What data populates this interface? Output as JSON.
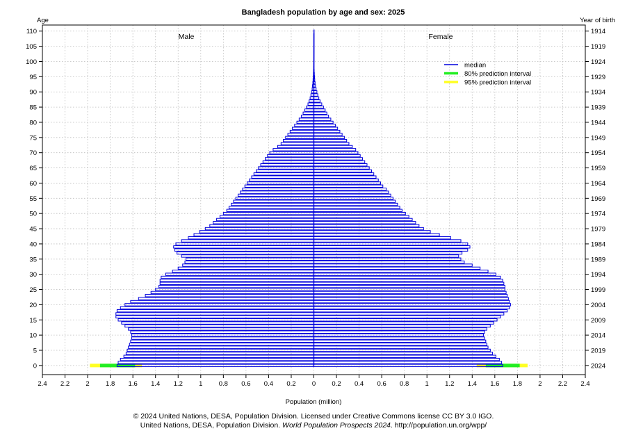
{
  "chart_data": {
    "type": "bar",
    "orientation": "population-pyramid",
    "title": "Bangladesh population by age and sex: 2025",
    "left_axis_title": "Age",
    "right_axis_title": "Year of birth",
    "xlabel": "Population (million)",
    "xlim": [
      -2.4,
      2.4
    ],
    "ylim": [
      -3,
      112
    ],
    "grid": true,
    "x_ticks": [
      -2.4,
      -2.2,
      -2,
      -1.8,
      -1.6,
      -1.4,
      -1.2,
      -1,
      -0.8,
      -0.6,
      -0.4,
      -0.2,
      0,
      0.2,
      0.4,
      0.6,
      0.8,
      1,
      1.2,
      1.4,
      1.6,
      1.8,
      2,
      2.2,
      2.4
    ],
    "x_tick_labels": [
      "2.4",
      "2.2",
      "2",
      "1.8",
      "1.6",
      "1.4",
      "1.2",
      "1",
      "0.8",
      "0.6",
      "0.4",
      "0.2",
      "0",
      "0.2",
      "0.4",
      "0.6",
      "0.8",
      "1",
      "1.2",
      "1.4",
      "1.6",
      "1.8",
      "2",
      "2.2",
      "2.4"
    ],
    "age_ticks": [
      0,
      5,
      10,
      15,
      20,
      25,
      30,
      35,
      40,
      45,
      50,
      55,
      60,
      65,
      70,
      75,
      80,
      85,
      90,
      95,
      100,
      105,
      110
    ],
    "age_tick_labels": [
      "0",
      "5",
      "10",
      "15",
      "20",
      "25",
      "30",
      "35",
      "40",
      "45",
      "50",
      "55",
      "60",
      "65",
      "70",
      "75",
      "80",
      "85",
      "90",
      "95",
      "100",
      "105",
      "110"
    ],
    "birth_year_tick_labels": [
      "2024",
      "2019",
      "2014",
      "2009",
      "2004",
      "1999",
      "1994",
      "1989",
      "1984",
      "1979",
      "1974",
      "1969",
      "1964",
      "1959",
      "1954",
      "1949",
      "1944",
      "1939",
      "1934",
      "1929",
      "1924",
      "1919",
      "1914"
    ],
    "side_labels": {
      "left": "Male",
      "right": "Female"
    },
    "legend": {
      "placement": "top-right",
      "entries": [
        {
          "label": "median",
          "color": "#0000dd"
        },
        {
          "label": "80% prediction interval",
          "color": "#22ee22"
        },
        {
          "label": "95% prediction interval",
          "color": "#ffff22"
        }
      ]
    },
    "colors": {
      "median": "#0000dd",
      "pi80": "#22ee22",
      "pi95": "#ffff22",
      "grid": "#bbbbbb"
    },
    "ages": [
      0,
      1,
      2,
      3,
      4,
      5,
      6,
      7,
      8,
      9,
      10,
      11,
      12,
      13,
      14,
      15,
      16,
      17,
      18,
      19,
      20,
      21,
      22,
      23,
      24,
      25,
      26,
      27,
      28,
      29,
      30,
      31,
      32,
      33,
      34,
      35,
      36,
      37,
      38,
      39,
      40,
      41,
      42,
      43,
      44,
      45,
      46,
      47,
      48,
      49,
      50,
      51,
      52,
      53,
      54,
      55,
      56,
      57,
      58,
      59,
      60,
      61,
      62,
      63,
      64,
      65,
      66,
      67,
      68,
      69,
      70,
      71,
      72,
      73,
      74,
      75,
      76,
      77,
      78,
      79,
      80,
      81,
      82,
      83,
      84,
      85,
      86,
      87,
      88,
      89,
      90,
      91,
      92,
      93,
      94,
      95,
      96,
      97,
      98,
      99,
      100,
      101,
      102,
      103,
      104,
      105,
      106,
      107,
      108,
      109,
      110
    ],
    "series": [
      {
        "name": "Male",
        "values": [
          1.74,
          1.73,
          1.71,
          1.68,
          1.66,
          1.65,
          1.64,
          1.63,
          1.62,
          1.61,
          1.61,
          1.62,
          1.64,
          1.67,
          1.7,
          1.73,
          1.75,
          1.75,
          1.74,
          1.71,
          1.67,
          1.62,
          1.55,
          1.49,
          1.44,
          1.4,
          1.37,
          1.36,
          1.36,
          1.35,
          1.31,
          1.25,
          1.2,
          1.16,
          1.14,
          1.13,
          1.17,
          1.21,
          1.23,
          1.24,
          1.22,
          1.17,
          1.11,
          1.06,
          1.01,
          0.96,
          0.92,
          0.89,
          0.86,
          0.83,
          0.8,
          0.77,
          0.75,
          0.73,
          0.71,
          0.69,
          0.67,
          0.65,
          0.63,
          0.61,
          0.59,
          0.57,
          0.55,
          0.53,
          0.51,
          0.49,
          0.47,
          0.45,
          0.43,
          0.41,
          0.39,
          0.36,
          0.32,
          0.29,
          0.27,
          0.25,
          0.23,
          0.21,
          0.19,
          0.17,
          0.15,
          0.13,
          0.11,
          0.095,
          0.08,
          0.065,
          0.052,
          0.042,
          0.033,
          0.026,
          0.02,
          0.015,
          0.012,
          0.009,
          0.007,
          0.005,
          0.004,
          0.003,
          0.002,
          0.0015,
          0.001,
          0.0008,
          0.0006,
          0.0005,
          0.0004,
          0.0003,
          0.0002,
          0.0002,
          0.0001,
          0.0001,
          0.0001
        ]
      },
      {
        "name": "Female",
        "values": [
          1.67,
          1.66,
          1.64,
          1.61,
          1.58,
          1.56,
          1.54,
          1.53,
          1.52,
          1.51,
          1.5,
          1.51,
          1.53,
          1.56,
          1.59,
          1.62,
          1.65,
          1.68,
          1.71,
          1.73,
          1.74,
          1.73,
          1.72,
          1.71,
          1.7,
          1.69,
          1.69,
          1.68,
          1.67,
          1.65,
          1.61,
          1.54,
          1.47,
          1.4,
          1.33,
          1.3,
          1.28,
          1.31,
          1.36,
          1.38,
          1.36,
          1.3,
          1.21,
          1.11,
          1.03,
          0.97,
          0.93,
          0.9,
          0.87,
          0.84,
          0.81,
          0.78,
          0.76,
          0.74,
          0.72,
          0.7,
          0.68,
          0.66,
          0.64,
          0.61,
          0.59,
          0.57,
          0.55,
          0.53,
          0.51,
          0.49,
          0.47,
          0.45,
          0.43,
          0.41,
          0.39,
          0.37,
          0.34,
          0.31,
          0.29,
          0.27,
          0.25,
          0.23,
          0.21,
          0.19,
          0.17,
          0.15,
          0.13,
          0.115,
          0.1,
          0.085,
          0.07,
          0.055,
          0.044,
          0.035,
          0.027,
          0.02,
          0.015,
          0.011,
          0.008,
          0.006,
          0.0045,
          0.003,
          0.002,
          0.0015,
          0.001,
          0.0008,
          0.0006,
          0.0005,
          0.0004,
          0.0003,
          0.0002,
          0.0002,
          0.0001,
          0.0001,
          0.0001
        ]
      }
    ],
    "age0_prediction_intervals": {
      "male": {
        "pi80": [
          1.58,
          1.89
        ],
        "pi95": [
          1.52,
          1.98
        ]
      },
      "female": {
        "pi80": [
          1.52,
          1.82
        ],
        "pi95": [
          1.44,
          1.89
        ]
      }
    }
  },
  "credits": {
    "line1": "© 2024 United Nations, DESA, Population Division. Licensed under Creative Commons license CC BY 3.0 IGO.",
    "line2_prefix": "United Nations, DESA, Population Division. ",
    "line2_italic": "World Population Prospects 2024",
    "line2_suffix": ". http://population.un.org/wpp/"
  }
}
